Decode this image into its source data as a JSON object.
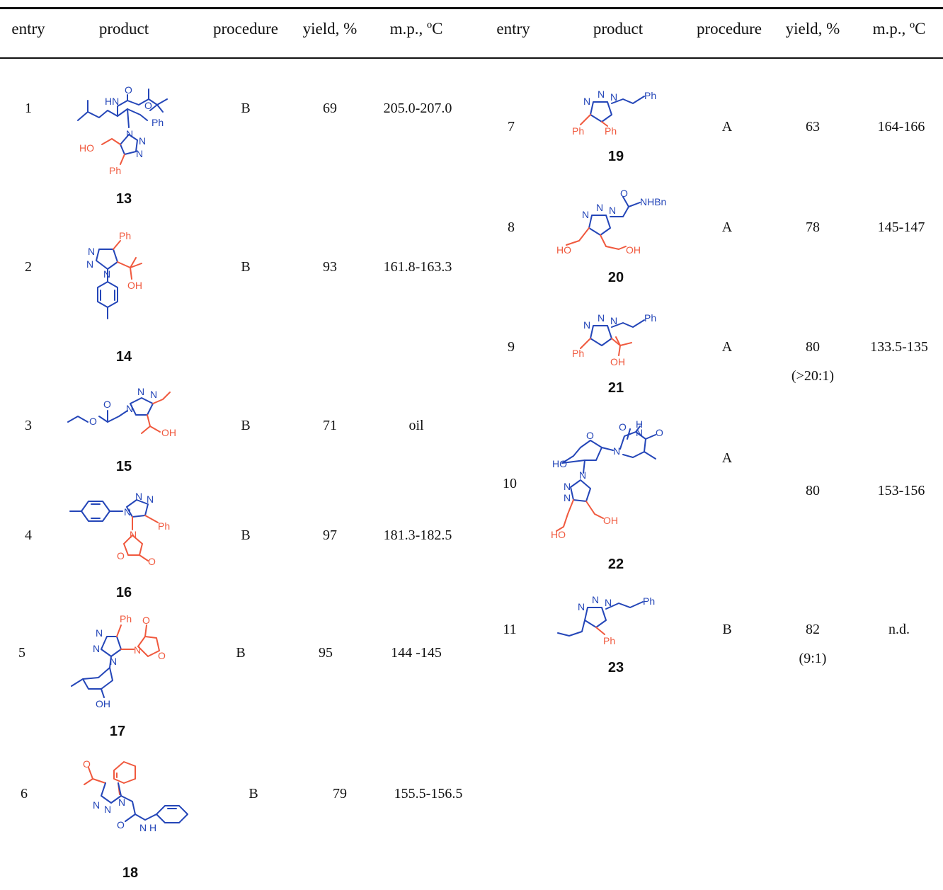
{
  "headers": {
    "left": [
      "entry",
      "product",
      "procedure",
      "yield, %",
      "m.p., ºC"
    ],
    "right": [
      "entry",
      "product",
      "procedure",
      "yield, %",
      "m.p., ºC"
    ]
  },
  "rows_left": [
    {
      "entry": "1",
      "compound": "13",
      "procedure": "B",
      "yield": "69",
      "mp": "205.0-207.0"
    },
    {
      "entry": "2",
      "compound": "14",
      "procedure": "B",
      "yield": "93",
      "mp": "161.8-163.3"
    },
    {
      "entry": "3",
      "compound": "15",
      "procedure": "B",
      "yield": "71",
      "mp": "oil"
    },
    {
      "entry": "4",
      "compound": "16",
      "procedure": "B",
      "yield": "97",
      "mp": "181.3-182.5"
    },
    {
      "entry": "5",
      "compound": "17",
      "procedure": "B",
      "yield": "95",
      "mp": "144 -145"
    },
    {
      "entry": "6",
      "compound": "18",
      "procedure": "B",
      "yield": "79",
      "mp": "155.5-156.5"
    }
  ],
  "rows_right": [
    {
      "entry": "7",
      "compound": "19",
      "procedure": "A",
      "yield": "63",
      "ratio": "",
      "mp": "164-166"
    },
    {
      "entry": "8",
      "compound": "20",
      "procedure": "A",
      "yield": "78",
      "ratio": "",
      "mp": "145-147"
    },
    {
      "entry": "9",
      "compound": "21",
      "procedure": "A",
      "yield": "80",
      "ratio": "(>20:1)",
      "mp": "133.5-135"
    },
    {
      "entry": "10",
      "compound": "22",
      "procedure": "A",
      "yield": "80",
      "ratio": "",
      "mp": "153-156"
    },
    {
      "entry": "11",
      "compound": "23",
      "procedure": "B",
      "yield": "82",
      "ratio": "(9:1)",
      "mp": "n.d."
    }
  ],
  "atom_labels": {
    "ph": "Ph",
    "oh": "OH",
    "ho": "HO",
    "hn": "HN",
    "nhbn": "NHBn",
    "n": "N",
    "o": "O",
    "h": "H",
    "nh": "N H"
  },
  "colors": {
    "new_ring_atoms": "#2446b8",
    "alkyne_fragment": "#f0593e",
    "rules": "#111111"
  }
}
